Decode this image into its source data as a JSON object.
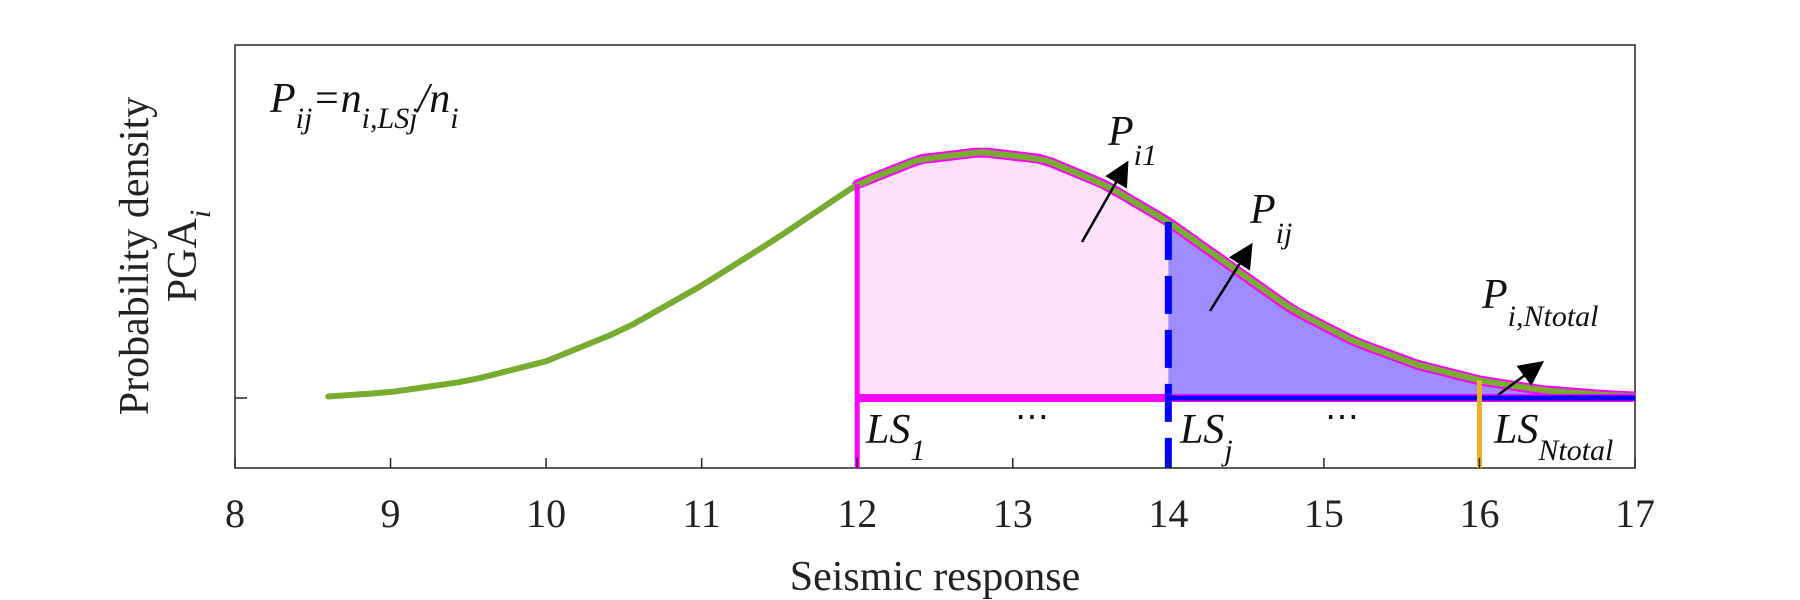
{
  "chart_data": {
    "type": "line",
    "xlabel": "Seismic response",
    "ylabel_line1": "Probability density",
    "ylabel_line2_main": "PGA",
    "ylabel_line2_sub": "i",
    "xlim": [
      8,
      17
    ],
    "x_ticks": [
      "8",
      "9",
      "10",
      "11",
      "12",
      "13",
      "14",
      "15",
      "16",
      "17"
    ],
    "y_ticks": [
      ""
    ],
    "curve": {
      "color": "#77AC30",
      "x": [
        8.6,
        9.0,
        9.5,
        10.0,
        10.5,
        11.0,
        11.5,
        12.0,
        12.4,
        12.8,
        13.2,
        13.6,
        14.0,
        14.4,
        14.8,
        15.2,
        15.6,
        16.0,
        16.4,
        16.8,
        17.0
      ],
      "y": [
        0.003,
        0.012,
        0.035,
        0.075,
        0.14,
        0.23,
        0.33,
        0.437,
        0.488,
        0.503,
        0.488,
        0.435,
        0.36,
        0.27,
        0.18,
        0.115,
        0.068,
        0.036,
        0.016,
        0.006,
        0.003
      ]
    },
    "limit_states": [
      {
        "x": 12,
        "color": "#FF00FF",
        "style": "solid"
      },
      {
        "x": 14,
        "color": "#0000FF",
        "style": "dashed"
      },
      {
        "x": 16,
        "color": "#EDB120",
        "style": "solid"
      }
    ],
    "regions": [
      {
        "from": 12,
        "to": 14,
        "fill": "#FFE0FA"
      },
      {
        "from": 14,
        "to": 17,
        "fill": "#9E8CFF"
      }
    ],
    "formula": {
      "p": "P",
      "p_sub": "ij",
      "eq": "=n",
      "n_sub": "i,LSj",
      "slash": "/n",
      "d_sub": "i"
    },
    "annotations": [
      {
        "main": "P",
        "sub": "i1"
      },
      {
        "main": "P",
        "sub": "ij"
      },
      {
        "main": "P",
        "sub": "i,Ntotal"
      }
    ],
    "ls_labels": [
      {
        "main": "LS",
        "sub": "1"
      },
      {
        "main": "LS",
        "sub": "j"
      },
      {
        "main": "LS",
        "sub": "Ntotal"
      }
    ],
    "ellipses": [
      "⋯",
      "⋯"
    ]
  }
}
